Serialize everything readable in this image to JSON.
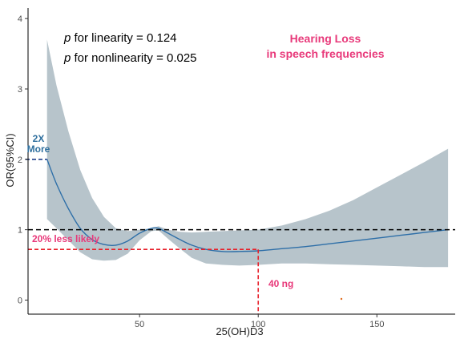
{
  "chart_data": {
    "type": "line",
    "title_lines": [
      "Hearing Loss",
      "in speech frequencies"
    ],
    "xlabel": "25(OH)D3",
    "ylabel": "OR(95%CI)",
    "xlim": [
      3,
      183
    ],
    "ylim": [
      -0.2,
      4.15
    ],
    "x_ticks": [
      50,
      100,
      150
    ],
    "y_ticks": [
      0,
      1,
      2,
      3,
      4
    ],
    "grid": false,
    "stats": {
      "linearity_p_label": "p",
      "linearity_text": " for linearity = 0.124",
      "nonlinearity_p_label": "p",
      "nonlinearity_text": " for nonlinearity = 0.025"
    },
    "reference_line": {
      "y": 1,
      "style": "dashed",
      "color": "#000000"
    },
    "series": [
      {
        "kind": "estimate",
        "color": "#2e6fa8",
        "x": [
          11,
          15,
          20,
          25,
          30,
          35,
          40,
          45,
          50,
          55,
          58,
          62,
          67,
          72,
          78,
          85,
          92,
          100,
          110,
          120,
          130,
          140,
          150,
          160,
          170,
          180
        ],
        "y": [
          2.0,
          1.65,
          1.3,
          1.02,
          0.86,
          0.79,
          0.78,
          0.84,
          0.95,
          1.02,
          1.02,
          0.95,
          0.86,
          0.78,
          0.72,
          0.69,
          0.69,
          0.7,
          0.73,
          0.76,
          0.8,
          0.84,
          0.88,
          0.92,
          0.96,
          1.0
        ]
      }
    ],
    "ci_band": {
      "color": "#b7c4cb",
      "x": [
        11,
        15,
        20,
        25,
        30,
        35,
        40,
        45,
        50,
        55,
        58,
        62,
        67,
        72,
        78,
        85,
        92,
        100,
        110,
        120,
        130,
        140,
        150,
        160,
        170,
        180
      ],
      "upper": [
        3.7,
        3.05,
        2.4,
        1.85,
        1.45,
        1.18,
        1.02,
        0.98,
        1.0,
        1.02,
        1.05,
        1.0,
        0.97,
        0.96,
        0.97,
        0.98,
        0.99,
        1.0,
        1.06,
        1.15,
        1.27,
        1.42,
        1.6,
        1.78,
        1.96,
        2.15
      ],
      "lower": [
        1.15,
        1.02,
        0.85,
        0.68,
        0.58,
        0.56,
        0.57,
        0.66,
        0.85,
        0.98,
        0.99,
        0.87,
        0.73,
        0.6,
        0.52,
        0.5,
        0.49,
        0.5,
        0.52,
        0.52,
        0.51,
        0.5,
        0.49,
        0.48,
        0.47,
        0.47
      ]
    },
    "annotations": [
      {
        "id": "two_x",
        "line1": "2X",
        "line2": "More",
        "color": "#2e6f9e",
        "y": 2.0
      },
      {
        "id": "less_likely",
        "text": "20% less likely",
        "color": "#e8397a",
        "y": 0.72
      },
      {
        "id": "ng",
        "text": "40 ng",
        "color": "#e8397a",
        "x": 100
      }
    ]
  }
}
